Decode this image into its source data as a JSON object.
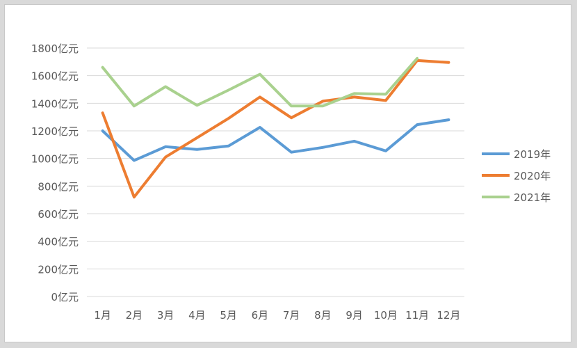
{
  "chart_data": {
    "type": "line",
    "categories": [
      "1月",
      "2月",
      "3月",
      "4月",
      "5月",
      "6月",
      "7月",
      "8月",
      "9月",
      "10月",
      "11月",
      "12月"
    ],
    "ylim": [
      0,
      1800
    ],
    "yticks": [
      0,
      200,
      400,
      600,
      800,
      1000,
      1200,
      1400,
      1600,
      1800
    ],
    "yunit": "亿元",
    "grid": true,
    "legend_position": "right",
    "series": [
      {
        "name": "2019年",
        "color": "#5b9bd5",
        "values": [
          1200,
          985,
          1085,
          1065,
          1090,
          1225,
          1045,
          1080,
          1125,
          1055,
          1245,
          1280
        ]
      },
      {
        "name": "2020年",
        "color": "#ed7d31",
        "values": [
          1330,
          720,
          1010,
          1150,
          1290,
          1445,
          1295,
          1415,
          1445,
          1420,
          1710,
          1695
        ]
      },
      {
        "name": "2021年",
        "color": "#a9d18e",
        "values": [
          1660,
          1380,
          1520,
          1385,
          1495,
          1610,
          1380,
          1380,
          1470,
          1465,
          1725,
          null
        ]
      }
    ]
  }
}
